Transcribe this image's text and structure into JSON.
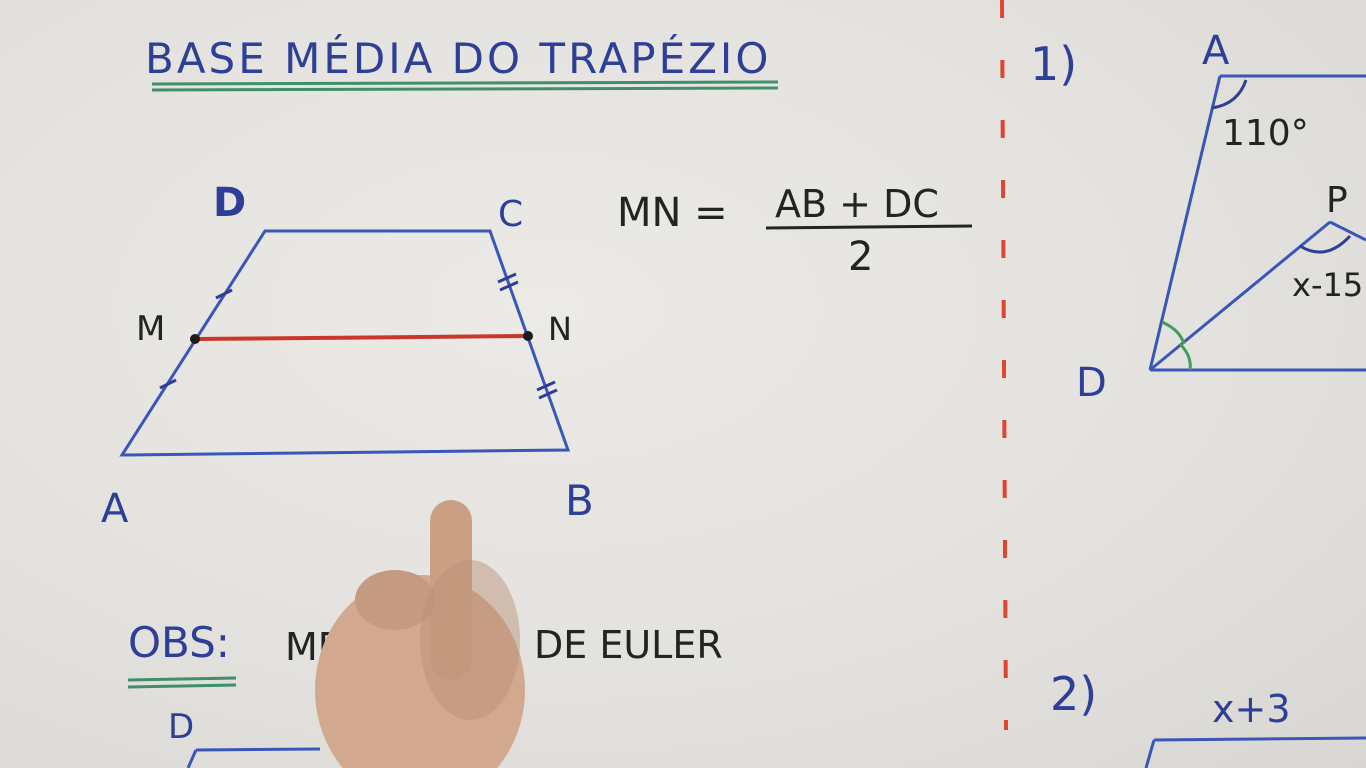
{
  "title": "BASE MÉDIA DO TRAPÉZIO",
  "colors": {
    "ink_blue": "#2d3f96",
    "ink_dark": "#232323",
    "midline_red": "#c8372b",
    "underline_green": "#3f8f6b",
    "divider_red": "#e0452f"
  },
  "trapezoid": {
    "vertex_D": "D",
    "vertex_C": "C",
    "vertex_A": "A",
    "vertex_B": "B",
    "midpoint_M": "M",
    "midpoint_N": "N"
  },
  "formula": {
    "lhs": "MN =",
    "numerator": "AB + DC",
    "denominator": "2"
  },
  "obs": {
    "label": "OBS:",
    "text_start": "ME",
    "text_end": "DE EULER"
  },
  "bottom_partial_label": "D",
  "exercise1": {
    "number": "1)",
    "vertex_A": "A",
    "angle_A": "110°",
    "point_P": "P",
    "angle_P": "x-15",
    "vertex_D": "D"
  },
  "exercise2": {
    "number": "2)",
    "top_base": "x+3"
  }
}
